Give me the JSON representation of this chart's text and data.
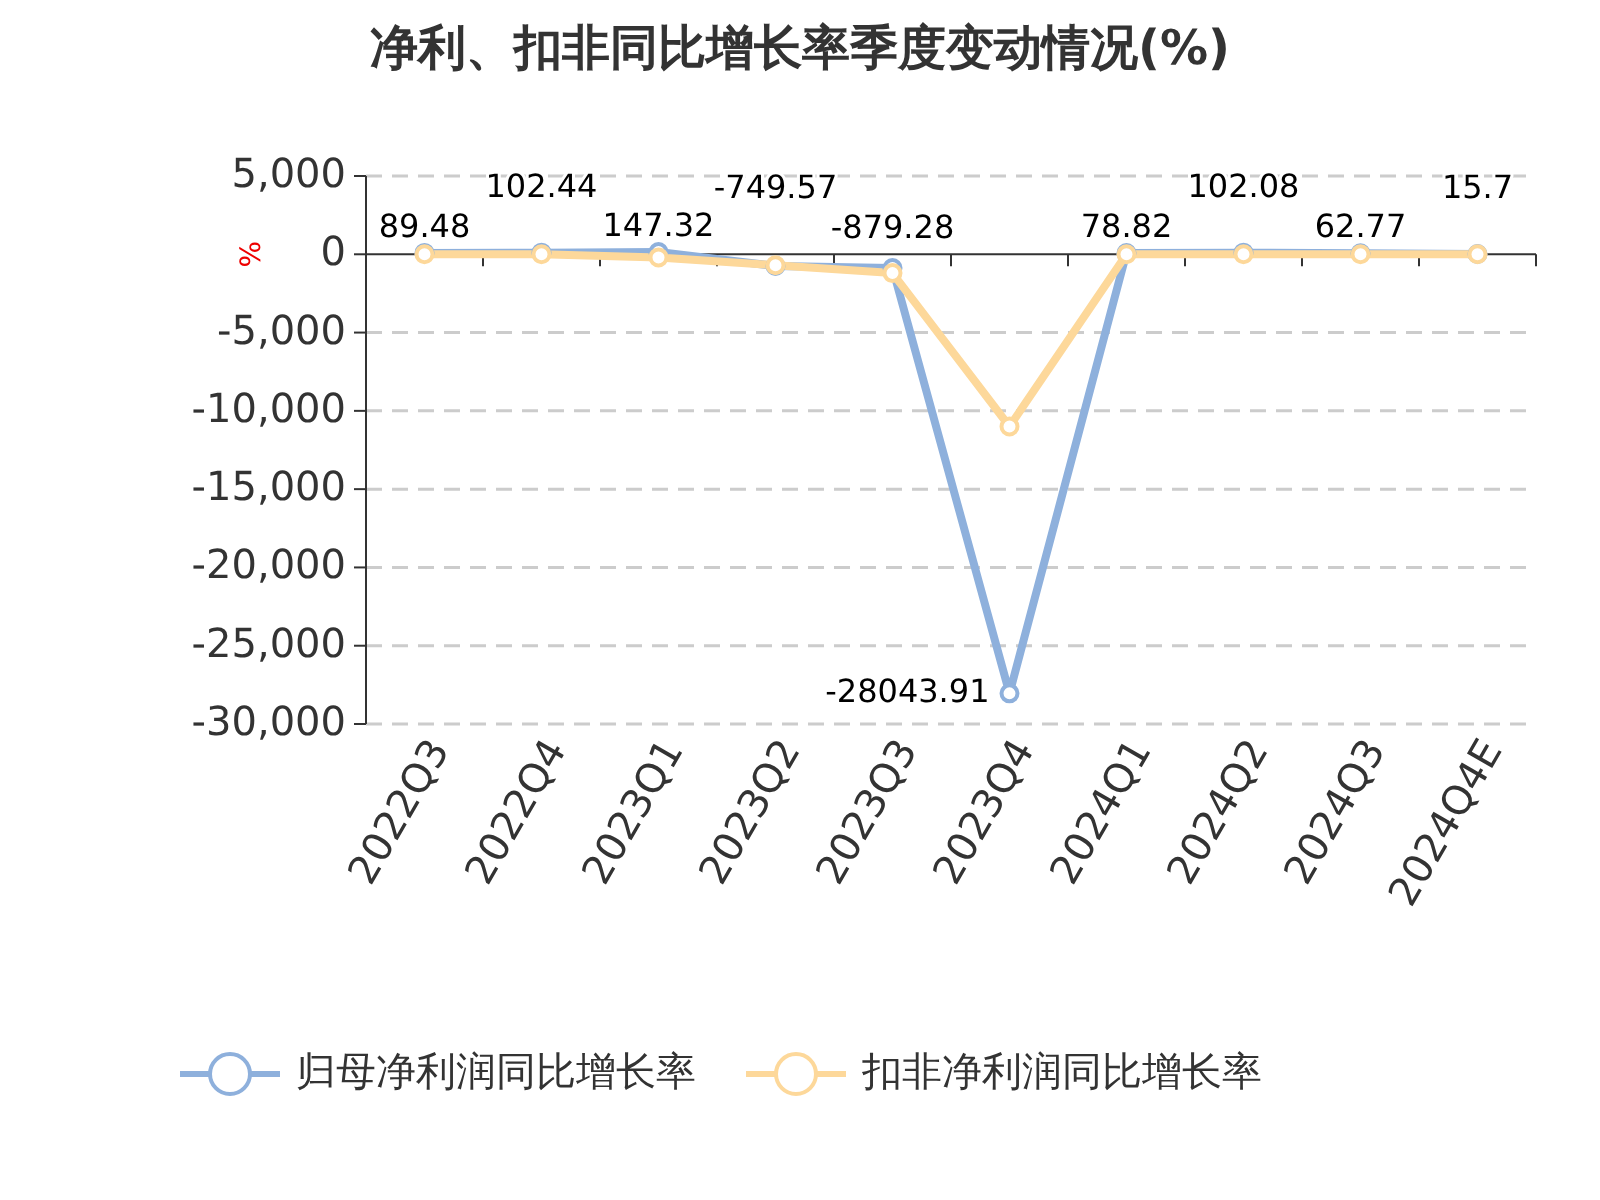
{
  "chart_data": {
    "type": "line",
    "title": "净利、扣非同比增长率季度变动情况(%)",
    "ylabel": "%",
    "categories": [
      "2022Q3",
      "2022Q4",
      "2023Q1",
      "2023Q2",
      "2023Q3",
      "2023Q4",
      "2024Q1",
      "2024Q2",
      "2024Q3",
      "2024Q4E"
    ],
    "series": [
      {
        "name": "归母净利润同比增长率",
        "color": "#8eb0dc",
        "values": [
          89.48,
          102.44,
          147.32,
          -749.57,
          -879.28,
          -28043.91,
          78.82,
          102.08,
          62.77,
          15.7
        ],
        "value_labels": [
          "89.48",
          "102.44",
          "147.32",
          "-749.57",
          "-879.28",
          "-28043.91",
          "78.82",
          "102.08",
          "62.77",
          "15.7"
        ]
      },
      {
        "name": "扣非净利润同比增长率",
        "color": "#fdd89a",
        "values": [
          0,
          0,
          -200,
          -700,
          -1200,
          -11000,
          0,
          0,
          0,
          0
        ]
      }
    ],
    "ylim": [
      -30000,
      5000
    ],
    "yticks": [
      {
        "value": 5000,
        "label": "5,000"
      },
      0,
      {
        "value": -5000,
        "label": "-5,000"
      },
      {
        "value": -10000,
        "label": "-10,000"
      },
      {
        "value": -15000,
        "label": "-15,000"
      },
      {
        "value": -20000,
        "label": "-20,000"
      },
      {
        "value": -25000,
        "label": "-25,000"
      },
      {
        "value": -30000,
        "label": "-30,000"
      }
    ],
    "grid": "y",
    "legend": "bottom",
    "marker": "circle",
    "line_style": "solid"
  }
}
